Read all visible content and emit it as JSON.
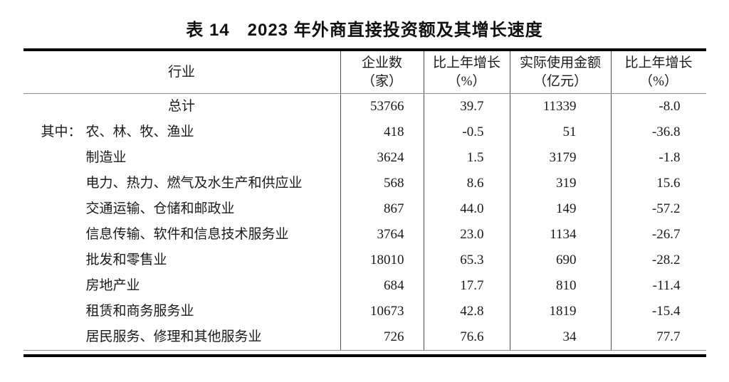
{
  "title": "表 14　2023 年外商直接投资额及其增长速度",
  "table": {
    "columns": [
      {
        "label": "行业",
        "sub": ""
      },
      {
        "label": "企业数",
        "sub": "（家）"
      },
      {
        "label": "比上年增长",
        "sub": "（%）"
      },
      {
        "label": "实际使用金额",
        "sub": "（亿元）"
      },
      {
        "label": "比上年增长",
        "sub": "（%）"
      }
    ],
    "rows": [
      {
        "prefix": "",
        "industry": "总计",
        "enterprises": "53766",
        "growth_enterprises": "39.7",
        "amount": "11339",
        "growth_amount": "-8.0"
      },
      {
        "prefix": "其中：",
        "industry": "农、林、牧、渔业",
        "enterprises": "418",
        "growth_enterprises": "-0.5",
        "amount": "51",
        "growth_amount": "-36.8"
      },
      {
        "prefix": "",
        "industry": "制造业",
        "enterprises": "3624",
        "growth_enterprises": "1.5",
        "amount": "3179",
        "growth_amount": "-1.8"
      },
      {
        "prefix": "",
        "industry": "电力、热力、燃气及水生产和供应业",
        "enterprises": "568",
        "growth_enterprises": "8.6",
        "amount": "319",
        "growth_amount": "15.6"
      },
      {
        "prefix": "",
        "industry": "交通运输、仓储和邮政业",
        "enterprises": "867",
        "growth_enterprises": "44.0",
        "amount": "149",
        "growth_amount": "-57.2"
      },
      {
        "prefix": "",
        "industry": "信息传输、软件和信息技术服务业",
        "enterprises": "3764",
        "growth_enterprises": "23.0",
        "amount": "1134",
        "growth_amount": "-26.7"
      },
      {
        "prefix": "",
        "industry": "批发和零售业",
        "enterprises": "18010",
        "growth_enterprises": "65.3",
        "amount": "690",
        "growth_amount": "-28.2"
      },
      {
        "prefix": "",
        "industry": "房地产业",
        "enterprises": "684",
        "growth_enterprises": "17.7",
        "amount": "810",
        "growth_amount": "-11.4"
      },
      {
        "prefix": "",
        "industry": "租赁和商务服务业",
        "enterprises": "10673",
        "growth_enterprises": "42.8",
        "amount": "1819",
        "growth_amount": "-15.4"
      },
      {
        "prefix": "",
        "industry": "居民服务、修理和其他服务业",
        "enterprises": "726",
        "growth_enterprises": "76.6",
        "amount": "34",
        "growth_amount": "77.7"
      }
    ]
  }
}
